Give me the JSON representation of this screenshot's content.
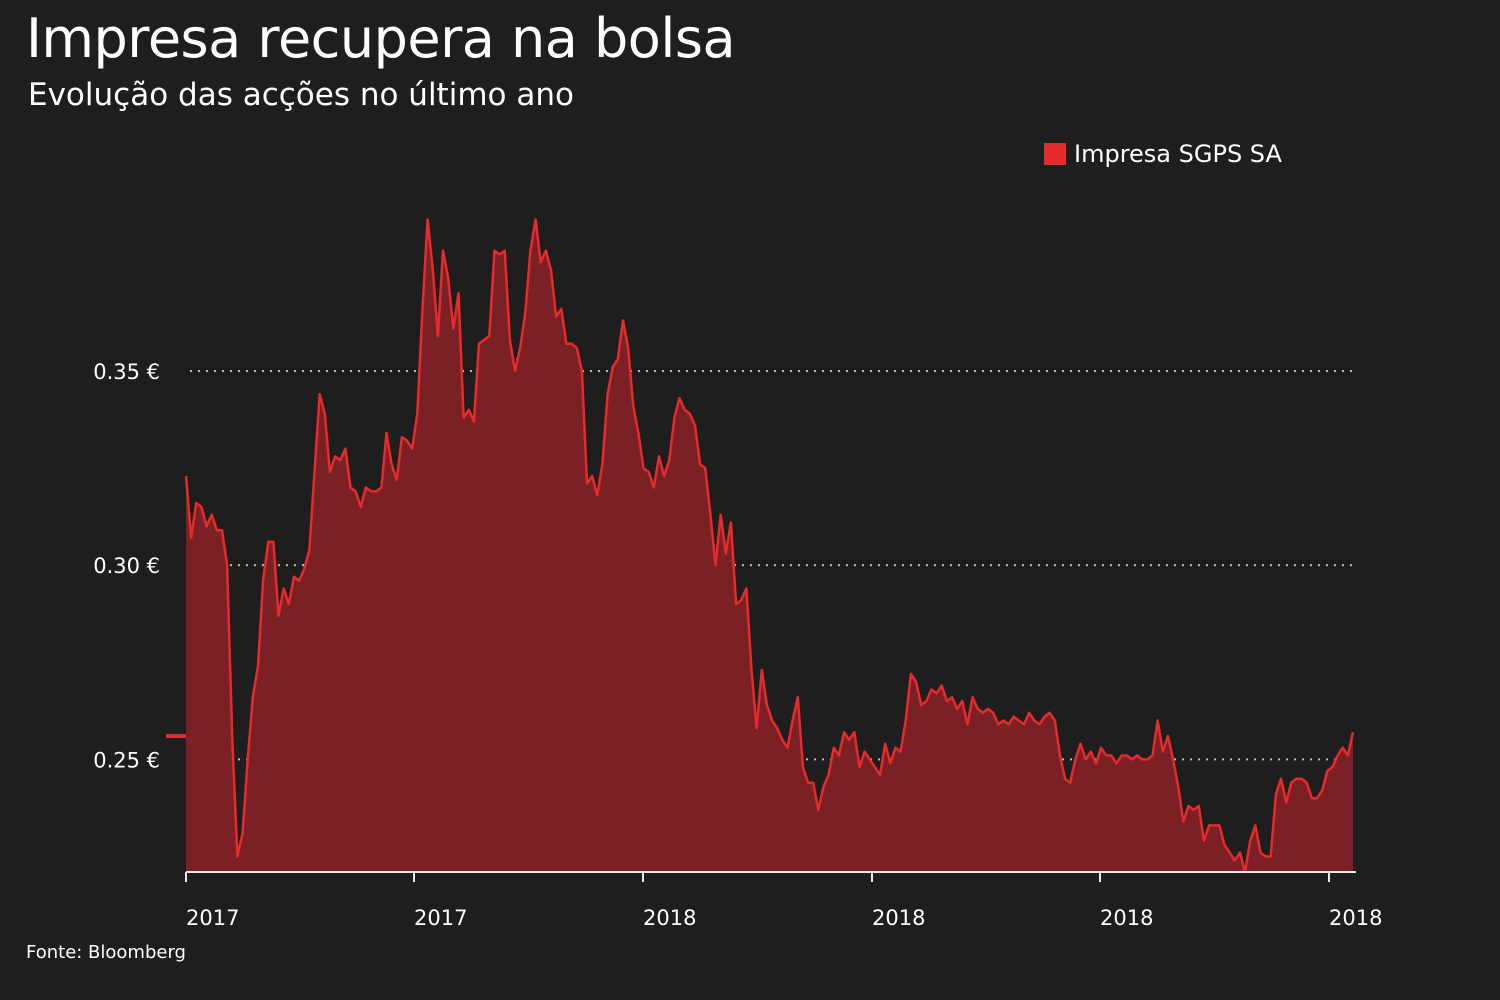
{
  "title": "Impresa recupera na bolsa",
  "subtitle": "Evolução das acções no último ano",
  "source": "Fonte: Bloomberg",
  "colors": {
    "background": "#1e1e1e",
    "line": "#e52b2b",
    "area": "#7b2024",
    "grid": "#bbbbbb",
    "text": "#ffffff"
  },
  "chart_data": {
    "type": "area",
    "title": "Impresa recupera na bolsa",
    "subtitle": "Evolução das acções no último ano",
    "xlabel": "",
    "ylabel": "",
    "ylim": [
      0.221,
      0.393
    ],
    "yticks": [
      {
        "value": 0.25,
        "label": "0.25 €"
      },
      {
        "value": 0.3,
        "label": "0.30 €"
      },
      {
        "value": 0.35,
        "label": "0.35 €"
      }
    ],
    "xticks": [
      "2017",
      "2017",
      "2018",
      "2018",
      "2018",
      "2018"
    ],
    "grid": true,
    "legend_position": "top-right",
    "last_value_marker": 0.256,
    "series": [
      {
        "name": "Impresa SGPS SA",
        "values": [
          0.323,
          0.307,
          0.316,
          0.315,
          0.31,
          0.313,
          0.309,
          0.309,
          0.3,
          0.255,
          0.225,
          0.231,
          0.25,
          0.266,
          0.274,
          0.296,
          0.306,
          0.306,
          0.287,
          0.294,
          0.29,
          0.297,
          0.296,
          0.299,
          0.304,
          0.324,
          0.344,
          0.339,
          0.324,
          0.328,
          0.327,
          0.33,
          0.32,
          0.319,
          0.315,
          0.32,
          0.319,
          0.319,
          0.32,
          0.334,
          0.326,
          0.322,
          0.333,
          0.332,
          0.33,
          0.339,
          0.366,
          0.389,
          0.376,
          0.359,
          0.381,
          0.374,
          0.361,
          0.37,
          0.338,
          0.34,
          0.337,
          0.357,
          0.358,
          0.359,
          0.381,
          0.38,
          0.381,
          0.358,
          0.35,
          0.356,
          0.365,
          0.381,
          0.389,
          0.378,
          0.381,
          0.376,
          0.364,
          0.366,
          0.357,
          0.357,
          0.356,
          0.35,
          0.321,
          0.323,
          0.318,
          0.326,
          0.344,
          0.351,
          0.353,
          0.363,
          0.356,
          0.341,
          0.334,
          0.325,
          0.324,
          0.32,
          0.328,
          0.323,
          0.327,
          0.338,
          0.343,
          0.34,
          0.339,
          0.336,
          0.326,
          0.325,
          0.313,
          0.3,
          0.313,
          0.303,
          0.311,
          0.29,
          0.291,
          0.294,
          0.273,
          0.258,
          0.273,
          0.264,
          0.26,
          0.258,
          0.255,
          0.253,
          0.26,
          0.266,
          0.248,
          0.244,
          0.244,
          0.237,
          0.243,
          0.246,
          0.253,
          0.251,
          0.257,
          0.255,
          0.257,
          0.248,
          0.252,
          0.25,
          0.248,
          0.246,
          0.254,
          0.249,
          0.253,
          0.252,
          0.26,
          0.272,
          0.27,
          0.264,
          0.265,
          0.268,
          0.267,
          0.269,
          0.265,
          0.266,
          0.263,
          0.265,
          0.259,
          0.266,
          0.263,
          0.262,
          0.263,
          0.262,
          0.259,
          0.26,
          0.259,
          0.261,
          0.26,
          0.259,
          0.262,
          0.26,
          0.259,
          0.261,
          0.262,
          0.26,
          0.251,
          0.245,
          0.244,
          0.25,
          0.254,
          0.25,
          0.252,
          0.249,
          0.253,
          0.251,
          0.251,
          0.249,
          0.251,
          0.251,
          0.25,
          0.251,
          0.25,
          0.25,
          0.251,
          0.26,
          0.252,
          0.256,
          0.25,
          0.243,
          0.234,
          0.238,
          0.237,
          0.238,
          0.229,
          0.233,
          0.233,
          0.233,
          0.228,
          0.226,
          0.224,
          0.226,
          0.221,
          0.229,
          0.233,
          0.226,
          0.225,
          0.225,
          0.241,
          0.245,
          0.239,
          0.244,
          0.245,
          0.245,
          0.244,
          0.24,
          0.24,
          0.242,
          0.247,
          0.248,
          0.251,
          0.253,
          0.251,
          0.257
        ]
      }
    ]
  }
}
